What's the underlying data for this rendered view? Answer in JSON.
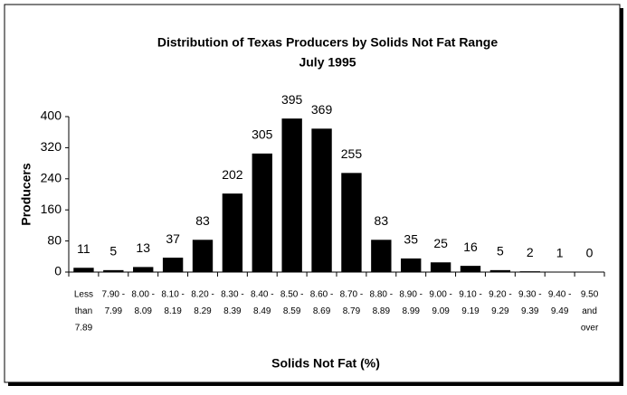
{
  "chart_data": {
    "type": "bar",
    "title": "Distribution of Texas Producers by Solids Not Fat Range",
    "subtitle": "July 1995",
    "x_label": "Solids Not Fat (%)",
    "y_label": "Producers",
    "categories": [
      [
        "Less",
        "than",
        "7.89"
      ],
      [
        "7.90 -",
        "7.99"
      ],
      [
        "8.00 -",
        "8.09"
      ],
      [
        "8.10 -",
        "8.19"
      ],
      [
        "8.20 -",
        "8.29"
      ],
      [
        "8.30 -",
        "8.39"
      ],
      [
        "8.40 -",
        "8.49"
      ],
      [
        "8.50 -",
        "8.59"
      ],
      [
        "8.60 -",
        "8.69"
      ],
      [
        "8.70 -",
        "8.79"
      ],
      [
        "8.80 -",
        "8.89"
      ],
      [
        "8.90 -",
        "8.99"
      ],
      [
        "9.00 -",
        "9.09"
      ],
      [
        "9.10 -",
        "9.19"
      ],
      [
        "9.20 -",
        "9.29"
      ],
      [
        "9.30 -",
        "9.39"
      ],
      [
        "9.40 -",
        "9.49"
      ],
      [
        "9.50",
        "and",
        "over"
      ]
    ],
    "values": [
      11,
      5,
      13,
      37,
      83,
      202,
      305,
      395,
      369,
      255,
      83,
      35,
      25,
      16,
      5,
      2,
      1,
      0
    ],
    "color": "#000000",
    "ylim": [
      0,
      400
    ],
    "yticks": [
      0,
      80,
      160,
      240,
      320,
      400
    ],
    "grid": false
  }
}
